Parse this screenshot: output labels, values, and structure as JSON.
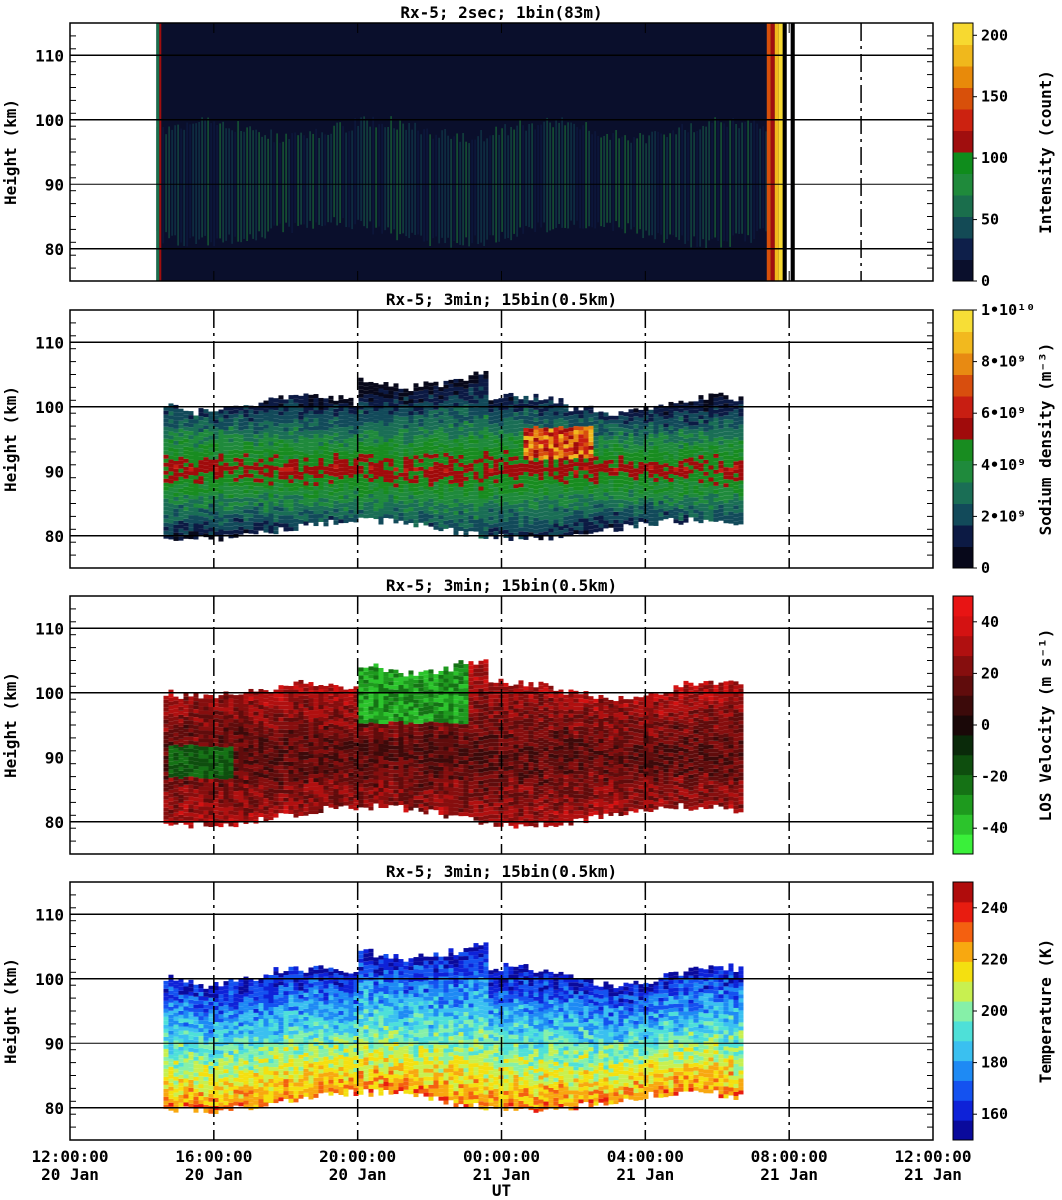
{
  "figure": {
    "time_axis_title": "UT"
  },
  "time_ticks": [
    {
      "hours": 12,
      "time": "12:00:00",
      "date": "20 Jan"
    },
    {
      "hours": 16,
      "time": "16:00:00",
      "date": "20 Jan"
    },
    {
      "hours": 20,
      "time": "20:00:00",
      "date": "20 Jan"
    },
    {
      "hours": 24,
      "time": "00:00:00",
      "date": "21 Jan"
    },
    {
      "hours": 28,
      "time": "04:00:00",
      "date": "21 Jan"
    },
    {
      "hours": 32,
      "time": "08:00:00",
      "date": "21 Jan"
    },
    {
      "hours": 36,
      "time": "12:00:00",
      "date": "21 Jan"
    }
  ],
  "chart_data": [
    {
      "type": "heatmap",
      "title": "Rx-5;  2sec; 1bin(83m)",
      "ylabel": "Height (km)",
      "xlabel": "UT",
      "xlim_hours": [
        12,
        36
      ],
      "ylim": [
        75,
        115
      ],
      "yticks": [
        80,
        90,
        100,
        110
      ],
      "ygrid_lines": [
        80,
        90,
        100,
        110
      ],
      "xgrid_dashed_hours": [
        34
      ],
      "data_extent_hours": [
        14.4,
        32.1
      ],
      "layer_km": [
        81.5,
        99.5
      ],
      "peak_km": 90,
      "colorbar": {
        "label": "Intensity (count)",
        "range": [
          0,
          210
        ],
        "ticks": [
          {
            "v": 0,
            "t": "0"
          },
          {
            "v": 50,
            "t": "50"
          },
          {
            "v": 100,
            "t": "100"
          },
          {
            "v": 150,
            "t": "150"
          },
          {
            "v": 200,
            "t": "200"
          }
        ],
        "colors": [
          "#0a0f2c",
          "#0e1f4a",
          "#134a55",
          "#1a6e4c",
          "#1f8a3b",
          "#0f8c1c",
          "#a00e0e",
          "#cc2210",
          "#d8500a",
          "#e88a0a",
          "#f0b81c",
          "#f7d930"
        ]
      }
    },
    {
      "type": "heatmap",
      "title": "Rx-5; 3min; 15bin(0.5km)",
      "ylabel": "Height (km)",
      "xlabel": "UT",
      "xlim_hours": [
        12,
        36
      ],
      "ylim": [
        75,
        115
      ],
      "yticks": [
        80,
        90,
        100,
        110
      ],
      "ygrid_lines": [
        80,
        100,
        110
      ],
      "xgrid_dashed_hours": [
        16,
        20,
        24,
        28,
        32
      ],
      "data_extent_hours": [
        14.6,
        30.7
      ],
      "layer_km": [
        81.5,
        99.5
      ],
      "peak_km": 90,
      "colorbar": {
        "label": "Sodium density (m⁻³)",
        "range": [
          0,
          10000000000
        ],
        "ticks": [
          {
            "v": 0,
            "t": "0"
          },
          {
            "v": 2000000000,
            "t": "2•10⁹"
          },
          {
            "v": 4000000000,
            "t": "4•10⁹"
          },
          {
            "v": 6000000000,
            "t": "6•10⁹"
          },
          {
            "v": 8000000000,
            "t": "8•10⁹"
          },
          {
            "v": 10000000000,
            "t": "1•10¹⁰"
          }
        ],
        "colors": [
          "#07081a",
          "#0c1a44",
          "#124a5a",
          "#1a6e55",
          "#1f8a3c",
          "#188c20",
          "#a00b0b",
          "#c81e12",
          "#d84e0e",
          "#e88a12",
          "#f2b91e",
          "#f7de36"
        ]
      }
    },
    {
      "type": "heatmap",
      "title": "Rx-5; 3min; 15bin(0.5km)",
      "ylabel": "Height (km)",
      "xlabel": "UT",
      "xlim_hours": [
        12,
        36
      ],
      "ylim": [
        75,
        115
      ],
      "yticks": [
        80,
        90,
        100,
        110
      ],
      "ygrid_lines": [
        80,
        100,
        110
      ],
      "xgrid_dashed_hours": [
        16,
        20,
        24,
        28,
        32
      ],
      "data_extent_hours": [
        14.6,
        30.7
      ],
      "layer_km": [
        81.5,
        99.5
      ],
      "peak_km": 90,
      "colorbar": {
        "label": "LOS Velocity (m s⁻¹)",
        "range": [
          -50,
          50
        ],
        "ticks": [
          {
            "v": -40,
            "t": "-40"
          },
          {
            "v": -20,
            "t": "-20"
          },
          {
            "v": 0,
            "t": "0"
          },
          {
            "v": 20,
            "t": "20"
          },
          {
            "v": 40,
            "t": "40"
          }
        ],
        "colors": [
          "#3af03a",
          "#2cc42c",
          "#1e9a1e",
          "#157215",
          "#0e4e0e",
          "#0a2a0a",
          "#1a0808",
          "#3c0a0a",
          "#600c0c",
          "#860e0e",
          "#b01010",
          "#d41212",
          "#e81414"
        ]
      }
    },
    {
      "type": "heatmap",
      "title": "Rx-5; 3min; 15bin(0.5km)",
      "ylabel": "Height (km)",
      "xlabel": "UT",
      "xlim_hours": [
        12,
        36
      ],
      "ylim": [
        75,
        115
      ],
      "yticks": [
        80,
        90,
        100,
        110
      ],
      "ygrid_lines": [
        80,
        90,
        100,
        110
      ],
      "xgrid_dashed_hours": [
        16,
        20,
        24,
        28,
        32
      ],
      "data_extent_hours": [
        14.6,
        30.7
      ],
      "layer_km": [
        81.5,
        99.5
      ],
      "peak_km": 90,
      "colorbar": {
        "label": "Temperature (K)",
        "range": [
          150,
          250
        ],
        "ticks": [
          {
            "v": 160,
            "t": "160"
          },
          {
            "v": 180,
            "t": "180"
          },
          {
            "v": 200,
            "t": "200"
          },
          {
            "v": 220,
            "t": "220"
          },
          {
            "v": 240,
            "t": "240"
          }
        ],
        "colors": [
          "#0a0a9c",
          "#0e22d8",
          "#1452f0",
          "#1e8af4",
          "#3ac0f0",
          "#4ee0d8",
          "#86f0a8",
          "#c8f050",
          "#f4e010",
          "#f8a810",
          "#f46010",
          "#e81c10",
          "#b00c0c"
        ]
      }
    }
  ]
}
